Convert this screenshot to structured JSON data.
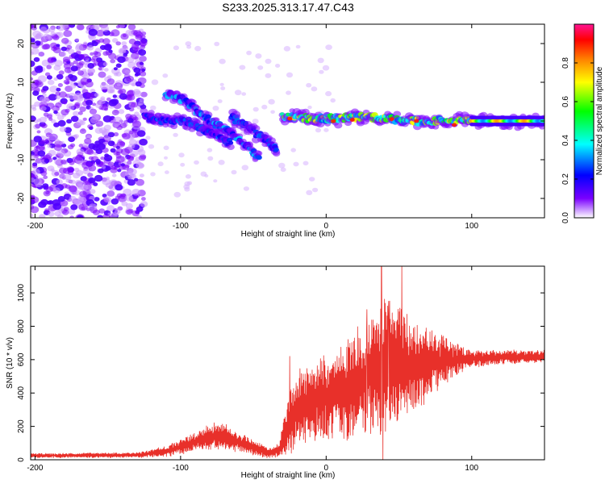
{
  "figure": {
    "title": "S233.2025.313.17.47.C43"
  },
  "colors": {
    "signal": "#e8302a",
    "frame": "#000000",
    "background": "#ffffff"
  },
  "chart_data": [
    {
      "type": "heatmap",
      "name": "spectrogram",
      "xlabel": "Height of straight line (km)",
      "ylabel": "Frequency (Hz)",
      "xlim": [
        -203,
        150
      ],
      "ylim": [
        -25,
        25
      ],
      "xticks": [
        -200,
        -100,
        0,
        100
      ],
      "yticks": [
        -20,
        -10,
        0,
        10,
        20
      ],
      "colorbar": {
        "label": "Normalized spectral amplitude",
        "range": [
          0,
          1
        ],
        "ticks": [
          0.0,
          0.2,
          0.4,
          0.6,
          0.8
        ],
        "tick_labels": [
          "0.0",
          "0.2",
          "0.4",
          "0.6",
          "0.8"
        ],
        "stops": [
          "#ffffff",
          "#7a00ff",
          "#0000ff",
          "#00ffff",
          "#00ff00",
          "#ffff00",
          "#ff8000",
          "#ff0000",
          "#ff1493"
        ]
      },
      "features": [
        {
          "name": "diffuse-noise",
          "x_range": [
            -203,
            -125
          ],
          "f_range": [
            -25,
            25
          ],
          "amplitude": 0.05
        },
        {
          "name": "branch-a",
          "points": [
            [
              -110,
              7
            ],
            [
              -100,
              6
            ],
            [
              -90,
              3
            ],
            [
              -80,
              0
            ],
            [
              -70,
              -2
            ],
            [
              -60,
              -5
            ],
            [
              -50,
              -8
            ],
            [
              -45,
              -10
            ]
          ],
          "amplitude": 0.35
        },
        {
          "name": "branch-b",
          "points": [
            [
              -125,
              1
            ],
            [
              -110,
              0
            ],
            [
              -95,
              0
            ],
            [
              -85,
              -2
            ],
            [
              -75,
              -4
            ],
            [
              -65,
              -6
            ]
          ],
          "amplitude": 0.3
        },
        {
          "name": "branch-c",
          "points": [
            [
              -65,
              1
            ],
            [
              -55,
              -1
            ],
            [
              -45,
              -4
            ],
            [
              -38,
              -6
            ],
            [
              -33,
              -8
            ]
          ],
          "amplitude": 0.3
        },
        {
          "name": "main-line",
          "points": [
            [
              -30,
              1
            ],
            [
              0,
              0.5
            ],
            [
              30,
              1
            ],
            [
              60,
              0
            ],
            [
              90,
              0
            ],
            [
              150,
              0
            ]
          ],
          "amplitude": 0.75
        }
      ]
    },
    {
      "type": "line",
      "name": "snr",
      "xlabel": "Height of straight line (km)",
      "ylabel": "SNR (10 * v/v)",
      "xlim": [
        -203,
        150
      ],
      "ylim": [
        0,
        1160
      ],
      "xticks": [
        -200,
        -100,
        0,
        100
      ],
      "yticks": [
        0,
        200,
        400,
        600,
        800,
        1000
      ],
      "series": [
        {
          "name": "SNR",
          "color": "#e8302a",
          "envelope": [
            {
              "x": -203,
              "mean": 25,
              "amp": 12
            },
            {
              "x": -130,
              "mean": 28,
              "amp": 14
            },
            {
              "x": -110,
              "mean": 50,
              "amp": 30
            },
            {
              "x": -95,
              "mean": 90,
              "amp": 50
            },
            {
              "x": -80,
              "mean": 140,
              "amp": 70
            },
            {
              "x": -70,
              "mean": 140,
              "amp": 75
            },
            {
              "x": -55,
              "mean": 90,
              "amp": 50
            },
            {
              "x": -40,
              "mean": 40,
              "amp": 30
            },
            {
              "x": -32,
              "mean": 60,
              "amp": 40
            },
            {
              "x": -28,
              "mean": 180,
              "amp": 140
            },
            {
              "x": -20,
              "mean": 300,
              "amp": 220
            },
            {
              "x": -10,
              "mean": 350,
              "amp": 230
            },
            {
              "x": 0,
              "mean": 380,
              "amp": 250
            },
            {
              "x": 15,
              "mean": 420,
              "amp": 280
            },
            {
              "x": 30,
              "mean": 520,
              "amp": 330
            },
            {
              "x": 40,
              "mean": 560,
              "amp": 380
            },
            {
              "x": 55,
              "mean": 560,
              "amp": 300
            },
            {
              "x": 70,
              "mean": 580,
              "amp": 200
            },
            {
              "x": 85,
              "mean": 590,
              "amp": 120
            },
            {
              "x": 100,
              "mean": 605,
              "amp": 50
            },
            {
              "x": 120,
              "mean": 615,
              "amp": 40
            },
            {
              "x": 150,
              "mean": 620,
              "amp": 35
            }
          ],
          "peaks": [
            {
              "x": 38,
              "y": 1160
            },
            {
              "x": 52,
              "y": 1160
            },
            {
              "x": 43,
              "y": 950
            },
            {
              "x": 28,
              "y": 900
            },
            {
              "x": -25,
              "y": 620
            }
          ],
          "dips": [
            {
              "x": 39,
              "y": 0
            },
            {
              "x": -35,
              "y": 15
            }
          ]
        }
      ]
    }
  ]
}
